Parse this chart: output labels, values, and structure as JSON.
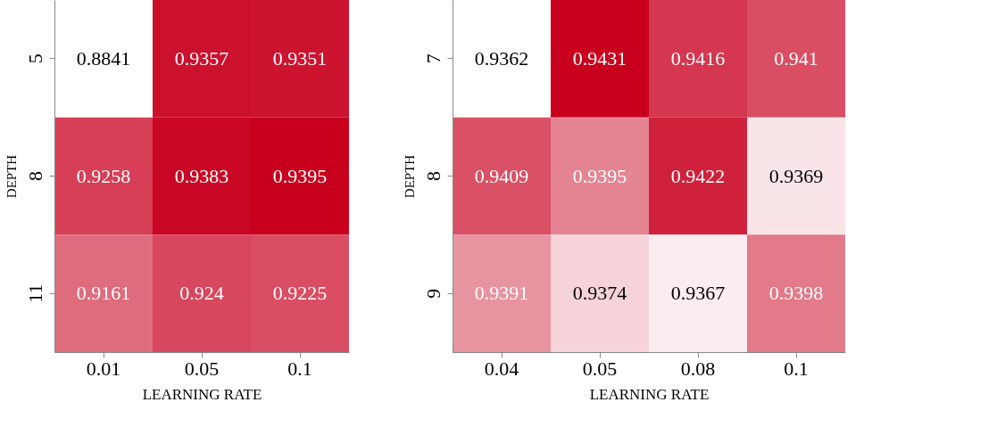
{
  "chart_data": [
    {
      "type": "heatmap",
      "xlabel": "LEARNING RATE",
      "ylabel": "DEPTH",
      "categories": [
        "0.01",
        "0.05",
        "0.1"
      ],
      "y_categories": [
        "5",
        "8",
        "11"
      ],
      "data_labels": true,
      "cells": [
        [
          0.8841,
          0.9357,
          0.9351
        ],
        [
          0.9258,
          0.9383,
          0.9395
        ],
        [
          0.9161,
          0.924,
          0.9225
        ]
      ]
    },
    {
      "type": "heatmap",
      "xlabel": "LEARNING RATE",
      "ylabel": "DEPTH",
      "categories": [
        "0.04",
        "0.05",
        "0.08",
        "0.1"
      ],
      "y_categories": [
        "7",
        "8",
        "9"
      ],
      "data_labels": true,
      "cells": [
        [
          0.9362,
          0.9431,
          0.9416,
          0.941
        ],
        [
          0.9409,
          0.9395,
          0.9422,
          0.9369
        ],
        [
          0.9391,
          0.9374,
          0.9367,
          0.9398
        ]
      ]
    }
  ]
}
